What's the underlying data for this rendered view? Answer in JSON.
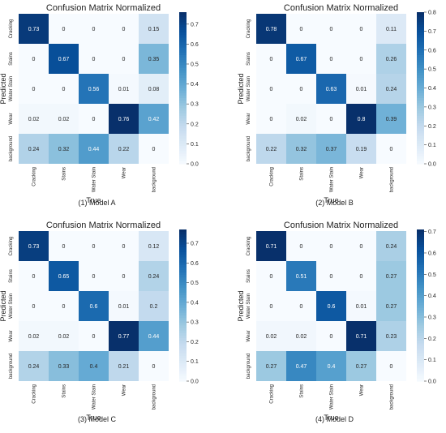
{
  "chart_data": [
    {
      "type": "heatmap",
      "title": "Confusion Matrix Normalized",
      "caption": "(1) Model A",
      "xlabel": "True",
      "ylabel": "Predicted",
      "x_categories": [
        "Cracking",
        "Stains",
        "Water Stain",
        "Wear",
        "background"
      ],
      "y_categories": [
        "Cracking",
        "Stains",
        "Water Stain",
        "Wear",
        "background"
      ],
      "values": [
        [
          0.73,
          0.0,
          0.0,
          0.0,
          0.15
        ],
        [
          0.0,
          0.67,
          0.0,
          0.0,
          0.35
        ],
        [
          0.0,
          0.0,
          0.56,
          0.01,
          0.08
        ],
        [
          0.02,
          0.02,
          0.0,
          0.76,
          0.42
        ],
        [
          0.24,
          0.32,
          0.44,
          0.22,
          0.0
        ]
      ],
      "colorbar": {
        "min": 0.0,
        "max": 0.76,
        "ticks": [
          "0.0",
          "0.1",
          "0.2",
          "0.3",
          "0.4",
          "0.5",
          "0.6",
          "0.7"
        ]
      },
      "colormap": [
        "#f7fbff",
        "#deebf7",
        "#c6dbef",
        "#9ecae1",
        "#6baed6",
        "#4292c6",
        "#2171b5",
        "#08519c",
        "#08306b"
      ]
    },
    {
      "type": "heatmap",
      "title": "Confusion Matrix Normalized",
      "caption": "(2) Model B",
      "xlabel": "True",
      "ylabel": "Predicted",
      "x_categories": [
        "Cracking",
        "Stains",
        "Water Stain",
        "Wear",
        "background"
      ],
      "y_categories": [
        "Cracking",
        "Stains",
        "Water Stain",
        "Wear",
        "background"
      ],
      "values": [
        [
          0.78,
          0.0,
          0.0,
          0.0,
          0.11
        ],
        [
          0.0,
          0.67,
          0.0,
          0.0,
          0.26
        ],
        [
          0.0,
          0.0,
          0.63,
          0.01,
          0.24
        ],
        [
          0.0,
          0.02,
          0.0,
          0.8,
          0.39
        ],
        [
          0.22,
          0.32,
          0.37,
          0.19,
          0.0
        ]
      ],
      "colorbar": {
        "min": 0.0,
        "max": 0.8,
        "ticks": [
          "0.0",
          "0.1",
          "0.2",
          "0.3",
          "0.4",
          "0.5",
          "0.6",
          "0.7",
          "0.8"
        ]
      },
      "colormap": [
        "#f7fbff",
        "#deebf7",
        "#c6dbef",
        "#9ecae1",
        "#6baed6",
        "#4292c6",
        "#2171b5",
        "#08519c",
        "#08306b"
      ]
    },
    {
      "type": "heatmap",
      "title": "Confusion Matrix Normalized",
      "caption": "(3) Model C",
      "xlabel": "True",
      "ylabel": "Predicted",
      "x_categories": [
        "Cracking",
        "Stains",
        "Water Stain",
        "Wear",
        "background"
      ],
      "y_categories": [
        "Cracking",
        "Stains",
        "Water Stain",
        "Wear",
        "background"
      ],
      "values": [
        [
          0.73,
          0.0,
          0.0,
          0.0,
          0.12
        ],
        [
          0.0,
          0.65,
          0.0,
          0.0,
          0.24
        ],
        [
          0.0,
          0.0,
          0.6,
          0.01,
          0.2
        ],
        [
          0.02,
          0.02,
          0.0,
          0.77,
          0.44
        ],
        [
          0.24,
          0.33,
          0.4,
          0.21,
          0.0
        ]
      ],
      "colorbar": {
        "min": 0.0,
        "max": 0.77,
        "ticks": [
          "0.0",
          "0.1",
          "0.2",
          "0.3",
          "0.4",
          "0.5",
          "0.6",
          "0.7"
        ]
      },
      "colormap": [
        "#f7fbff",
        "#deebf7",
        "#c6dbef",
        "#9ecae1",
        "#6baed6",
        "#4292c6",
        "#2171b5",
        "#08519c",
        "#08306b"
      ]
    },
    {
      "type": "heatmap",
      "title": "Confusion Matrix Normalized",
      "caption": "(4) Model D",
      "xlabel": "True",
      "ylabel": "Predicted",
      "x_categories": [
        "Cracking",
        "Stains",
        "Water Stain",
        "Wear",
        "background"
      ],
      "y_categories": [
        "Cracking",
        "Stains",
        "Water Stain",
        "Wear",
        "background"
      ],
      "values": [
        [
          0.71,
          0.0,
          0.0,
          0.0,
          0.24
        ],
        [
          0.0,
          0.51,
          0.0,
          0.0,
          0.27
        ],
        [
          0.0,
          0.0,
          0.6,
          0.01,
          0.27
        ],
        [
          0.02,
          0.02,
          0.0,
          0.71,
          0.23
        ],
        [
          0.27,
          0.47,
          0.4,
          0.27,
          0.0
        ]
      ],
      "colorbar": {
        "min": 0.0,
        "max": 0.71,
        "ticks": [
          "0.0",
          "0.1",
          "0.2",
          "0.3",
          "0.4",
          "0.5",
          "0.6",
          "0.7"
        ]
      },
      "colormap": [
        "#f7fbff",
        "#deebf7",
        "#c6dbef",
        "#9ecae1",
        "#6baed6",
        "#4292c6",
        "#2171b5",
        "#08519c",
        "#08306b"
      ]
    }
  ]
}
